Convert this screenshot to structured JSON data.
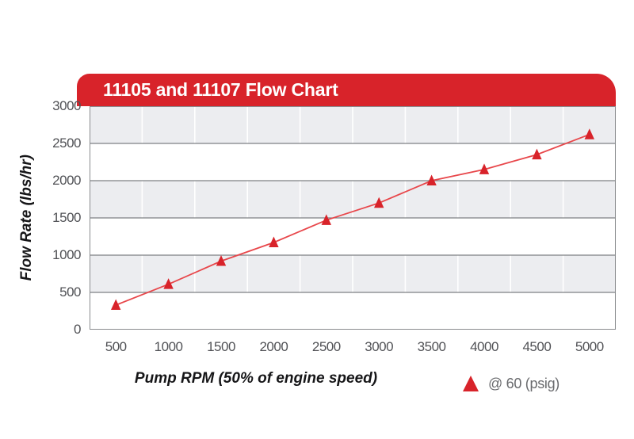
{
  "header": {
    "title": "11105 and 11107 Flow Chart"
  },
  "axes": {
    "ylabel": "Flow Rate (lbs/hr)",
    "xlabel": "Pump RPM (50% of engine speed)"
  },
  "legend": {
    "marker": "triangle-icon",
    "label": "@ 60 (psig)"
  },
  "colors": {
    "brand_red": "#d8232a",
    "marker_red": "#d8232a",
    "line_red": "#e8474b",
    "band_gray": "#ecedf0",
    "gridline": "#7e8083",
    "plot_border": "#8a8c8f",
    "tick_text": "#515256",
    "legend_text": "#6a6b6e",
    "title_text": "#ffffff",
    "background": "#ffffff"
  },
  "chart_data": {
    "type": "line",
    "title": "11105 and 11107 Flow Chart",
    "xlabel": "Pump RPM (50% of engine speed)",
    "ylabel": "Flow Rate (lbs/hr)",
    "categories": [
      500,
      1000,
      1500,
      2000,
      2500,
      3000,
      3500,
      4000,
      4500,
      5000
    ],
    "series": [
      {
        "name": "@ 60 (psig)",
        "marker": "triangle-up",
        "color": "#d8232a",
        "values": [
          330,
          610,
          920,
          1170,
          1470,
          1700,
          2000,
          2150,
          2350,
          2620
        ]
      }
    ],
    "ylim": [
      0,
      3000
    ],
    "ytick_step": 500,
    "y_tick_labels": [
      3000,
      2500,
      2000,
      1500,
      1000,
      500,
      0
    ],
    "x_tick_labels": [
      500,
      1000,
      1500,
      2000,
      2500,
      3000,
      3500,
      4000,
      4500,
      5000
    ],
    "grid": {
      "horizontal": true,
      "vertical": "white-on-gray-bands",
      "alternating_bands": true
    },
    "legend_position": "bottom-right"
  }
}
